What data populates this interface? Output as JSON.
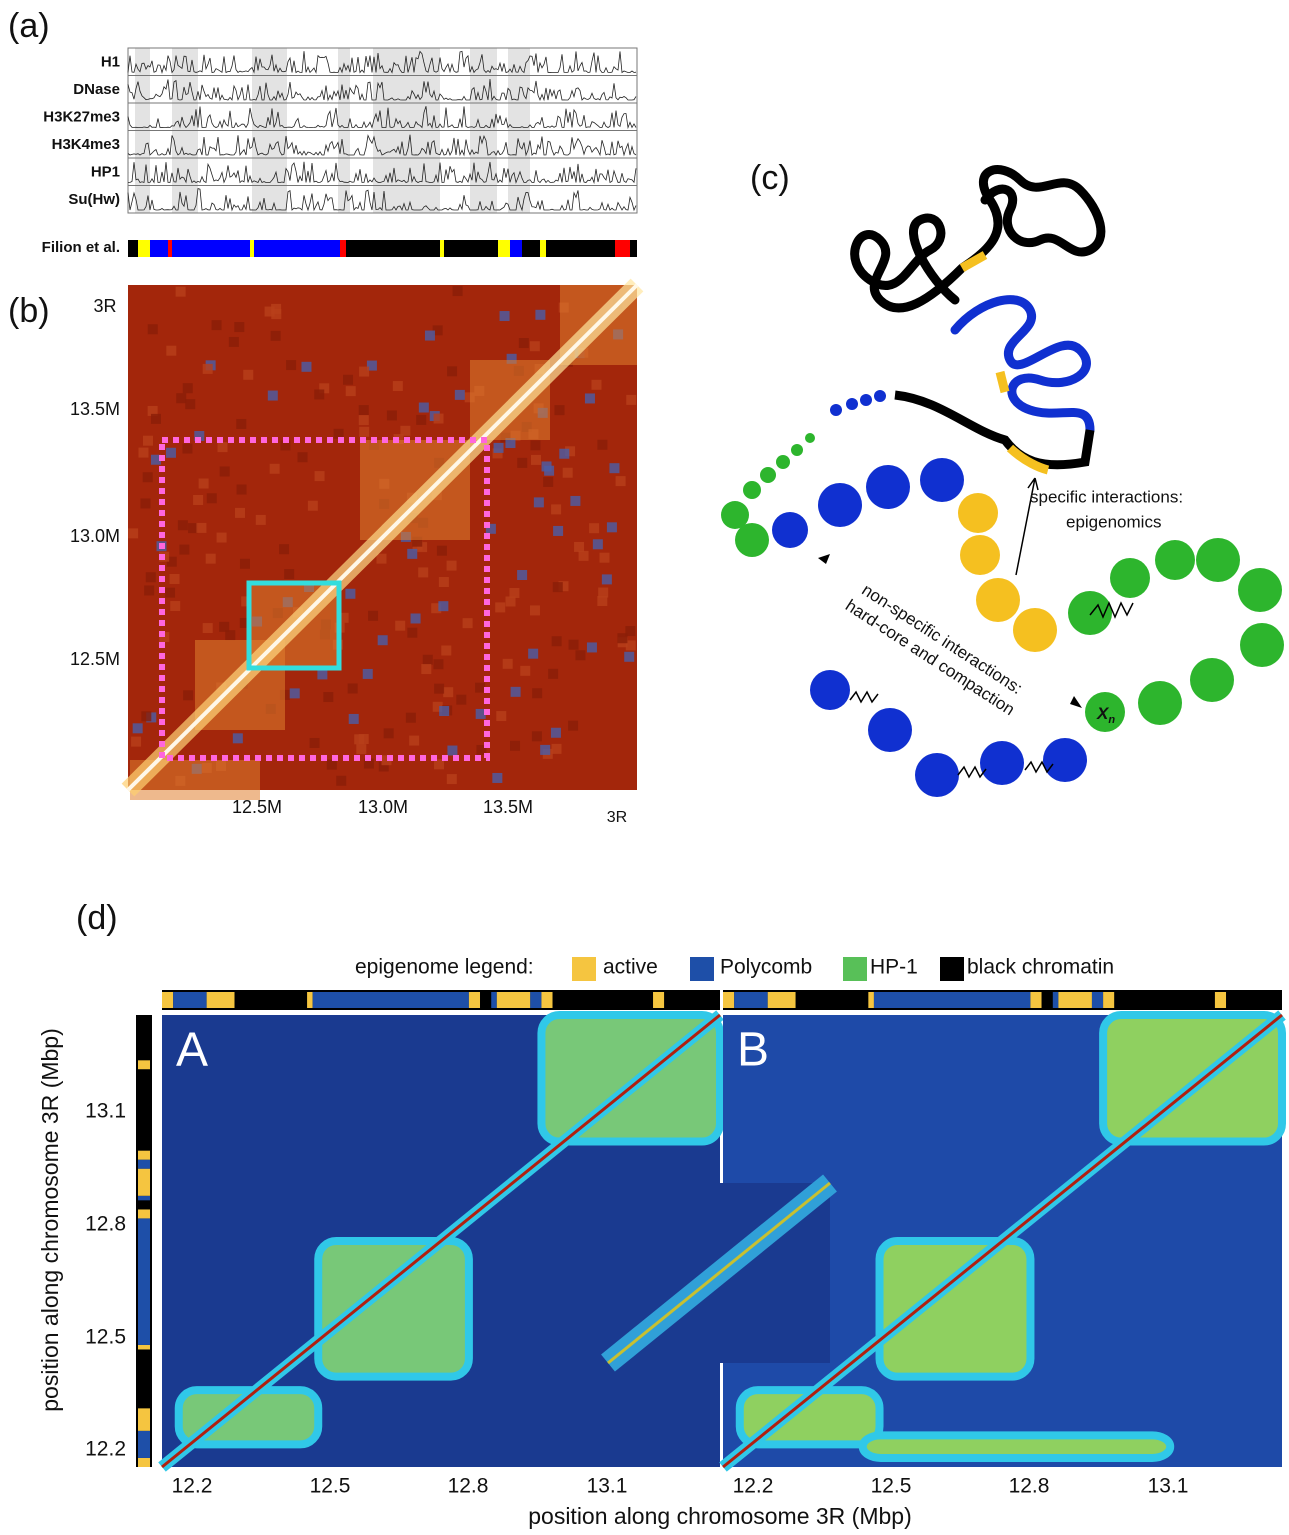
{
  "panels": {
    "a": {
      "label": "(a)",
      "tracks": [
        "H1",
        "DNase",
        "H3K27me3",
        "H3K4me3",
        "HP1",
        "Su(Hw)"
      ],
      "filion": "Filion et al."
    },
    "b": {
      "label": "(b)",
      "chrom_top": "3R",
      "yticks": [
        "13.5M",
        "13.0M",
        "12.5M"
      ],
      "xticks": [
        "12.5M",
        "13.0M",
        "13.5M"
      ],
      "chrom_bottom": "3R"
    },
    "c": {
      "label": "(c)",
      "specific": [
        "specific interactions:",
        "epigenomics"
      ],
      "nonspecific": [
        "non-specific interactions:",
        "hard-core and compaction"
      ],
      "symbol": "X",
      "subscript": "n"
    },
    "d": {
      "label": "(d)",
      "legend_title": "epigenome legend:",
      "legend": [
        "active",
        "Polycomb",
        "HP-1",
        "black chromatin"
      ],
      "maps": [
        "A",
        "B"
      ],
      "yticks": [
        "13.1",
        "12.8",
        "12.5",
        "12.2"
      ],
      "xticks": [
        "12.2",
        "12.5",
        "12.8",
        "13.1"
      ],
      "xlabel": "position along chromosome 3R (Mbp)",
      "ylabel": "position along chromosome 3R (Mbp)"
    }
  }
}
